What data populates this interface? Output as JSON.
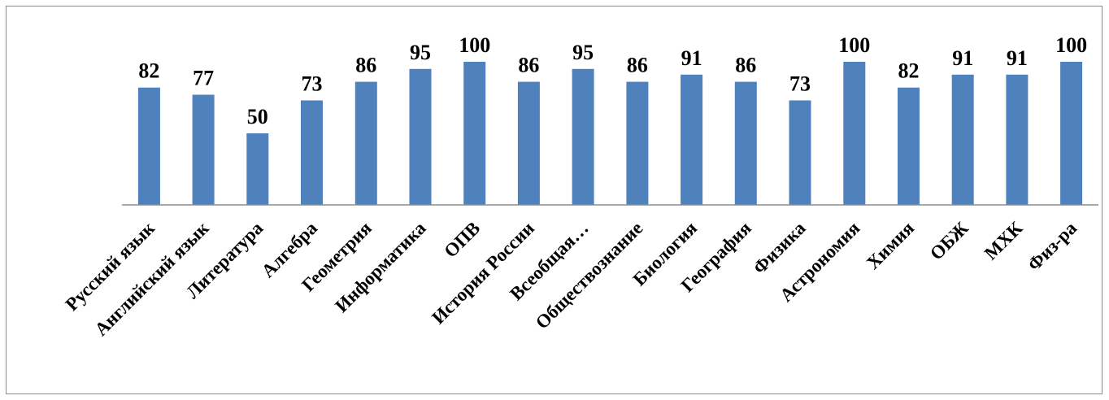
{
  "chart_data": {
    "type": "bar",
    "categories": [
      "Русский язык",
      "Английский язык",
      "Литература",
      "Алгебра",
      "Геометрия",
      "Информатика",
      "ОПВ",
      "История России",
      "Всеобщая…",
      "Обществознание",
      "Биология",
      "География",
      "Физика",
      "Астрономия",
      "Химия",
      "ОБЖ",
      "МХК",
      "Физ-ра"
    ],
    "values": [
      82,
      77,
      50,
      73,
      86,
      95,
      100,
      86,
      95,
      86,
      91,
      86,
      73,
      100,
      82,
      91,
      91,
      100
    ],
    "ylim": [
      0,
      100
    ],
    "grid": false,
    "legend": "none",
    "data_labels": true,
    "bar_color": "#4f81bd",
    "axis_color": "#8c8c8c"
  }
}
